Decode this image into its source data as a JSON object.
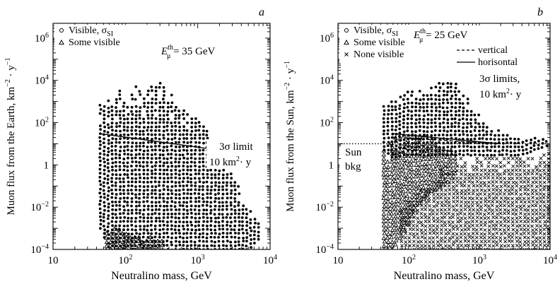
{
  "figure_colors": {
    "ink": "#000000",
    "background": "#ffffff"
  },
  "chart_data": [
    {
      "type": "scatter",
      "panel_letter": "a",
      "xlabel": "Neutralino mass, GeV",
      "ylabel": "Muon flux from the Earth, km",
      "ylabel_exponents": [
        "−2",
        "−1"
      ],
      "ylabel_mid": "· y",
      "x_log": true,
      "y_log": true,
      "xlim": [
        10,
        10000
      ],
      "ylim": [
        0.0001,
        5000000
      ],
      "x_ticks": [
        {
          "value": 10,
          "label": "10",
          "sup": ""
        },
        {
          "value": 100,
          "label": "10",
          "sup": "2"
        },
        {
          "value": 1000,
          "label": "10",
          "sup": "3"
        },
        {
          "value": 10000,
          "label": "10",
          "sup": "4"
        }
      ],
      "y_ticks": [
        {
          "value": 0.0001,
          "label": "10",
          "sup": "−4"
        },
        {
          "value": 0.01,
          "label": "10",
          "sup": "−2"
        },
        {
          "value": 1,
          "label": "1",
          "sup": ""
        },
        {
          "value": 100,
          "label": "10",
          "sup": "2"
        },
        {
          "value": 10000,
          "label": "10",
          "sup": "4"
        },
        {
          "value": 1000000,
          "label": "10",
          "sup": "6"
        }
      ],
      "legend": [
        {
          "marker": "circle",
          "label": "Visible, σ",
          "sub": "SI"
        },
        {
          "marker": "triangle",
          "label": "Some visible",
          "sub": ""
        }
      ],
      "threshold": {
        "base": "E",
        "sup": "th",
        "sub": "μ",
        "value": "= 35 GeV"
      },
      "annotations": [
        {
          "text": "3σ limit",
          "sup": "",
          "tail": ""
        },
        {
          "text": "10 km",
          "sup": "2",
          "tail": "· y"
        }
      ],
      "limit_lines": [
        {
          "name": "3σ limit",
          "style": "solid",
          "x": [
            45,
            2000
          ],
          "y": [
            30,
            5
          ]
        }
      ],
      "series": [
        {
          "name": "Visible, σSI",
          "marker": "circle",
          "envelope": {
            "x": [
              45,
              60,
              90,
              130,
              200,
              300,
              400,
              600,
              900,
              1400,
              2000,
              3000,
              5000,
              7000
            ],
            "upper": [
              800,
              1500,
              4000,
              5000,
              5000,
              8000,
              3000,
              1000,
              400,
              50,
              5,
              0.5,
              0.01,
              0.002
            ],
            "lower": [
              0.001,
              0.0001,
              0.0001,
              0.0001,
              0.0001,
              0.0001,
              0.0001,
              0.0001,
              0.0001,
              0.0001,
              0.0001,
              0.0001,
              0.0001,
              0.0003
            ]
          }
        },
        {
          "name": "Some visible",
          "marker": "triangle",
          "envelope": {
            "x": [
              55,
              80,
              120,
              200,
              350
            ],
            "upper": [
              0.001,
              0.001,
              0.0005,
              0.0004,
              0.0003
            ],
            "lower": [
              0.0001,
              0.0001,
              0.0001,
              0.0001,
              0.0001
            ]
          }
        }
      ]
    },
    {
      "type": "scatter",
      "panel_letter": "b",
      "xlabel": "Neutralino mass, GeV",
      "ylabel": "Muon flux from the Sun, km",
      "ylabel_exponents": [
        "−2",
        "−1"
      ],
      "ylabel_mid": "· y",
      "x_log": true,
      "y_log": true,
      "xlim": [
        10,
        10000
      ],
      "ylim": [
        0.0001,
        5000000
      ],
      "x_ticks": [
        {
          "value": 10,
          "label": "10",
          "sup": ""
        },
        {
          "value": 100,
          "label": "10",
          "sup": "2"
        },
        {
          "value": 1000,
          "label": "10",
          "sup": "3"
        },
        {
          "value": 10000,
          "label": "10",
          "sup": "4"
        }
      ],
      "y_ticks": [
        {
          "value": 0.0001,
          "label": "10",
          "sup": "−4"
        },
        {
          "value": 0.01,
          "label": "10",
          "sup": "−2"
        },
        {
          "value": 1,
          "label": "1",
          "sup": ""
        },
        {
          "value": 100,
          "label": "10",
          "sup": "2"
        },
        {
          "value": 10000,
          "label": "10",
          "sup": "4"
        },
        {
          "value": 1000000,
          "label": "10",
          "sup": "6"
        }
      ],
      "legend": [
        {
          "marker": "circle",
          "label": "Visible, σ",
          "sub": "SI"
        },
        {
          "marker": "triangle",
          "label": "Some visible",
          "sub": ""
        },
        {
          "marker": "cross",
          "label": "None visible",
          "sub": ""
        }
      ],
      "threshold": {
        "base": "E",
        "sup": "th",
        "sub": "μ",
        "value": "= 25 GeV"
      },
      "line_legend": [
        {
          "style": "dashed",
          "label": "vertical"
        },
        {
          "style": "solid",
          "label": "horisontal"
        }
      ],
      "annotations": [
        {
          "text": "3σ limits,",
          "sup": "",
          "tail": ""
        },
        {
          "text": "10 km",
          "sup": "2",
          "tail": "· y"
        }
      ],
      "bkg_labels": [
        "Sun",
        "bkg"
      ],
      "limit_lines": [
        {
          "name": "vertical",
          "style": "dashed",
          "x": [
            60,
            2000
          ],
          "y": [
            20,
            10
          ]
        },
        {
          "name": "horisontal",
          "style": "solid",
          "x": [
            60,
            2000
          ],
          "y": [
            30,
            10
          ]
        },
        {
          "name": "Sun bkg",
          "style": "dotted",
          "x": [
            10,
            10000
          ],
          "y": [
            10,
            10
          ]
        }
      ],
      "series": [
        {
          "name": "Visible, σSI",
          "marker": "circle",
          "envelope": {
            "x": [
              45,
              60,
              90,
              130,
              200,
              300,
              450,
              650,
              1000,
              1600,
              2500,
              4000,
              6000,
              9000
            ],
            "upper": [
              1000,
              1200,
              3000,
              4000,
              4000,
              12000,
              8000,
              1500,
              300,
              50,
              30,
              20,
              20,
              15
            ],
            "lower": [
              5,
              2,
              3,
              3,
              3,
              3,
              3,
              3,
              3,
              3,
              3,
              3,
              5,
              8
            ]
          }
        },
        {
          "name": "Some visible",
          "marker": "triangle",
          "envelope": {
            "x": [
              45,
              60,
              90,
              130,
              200,
              300,
              500
            ],
            "upper": [
              5,
              20,
              30,
              30,
              20,
              10,
              5
            ],
            "lower": [
              0.0001,
              0.0001,
              0.001,
              0.01,
              0.05,
              0.1,
              0.5
            ]
          }
        },
        {
          "name": "None visible",
          "marker": "cross",
          "envelope": {
            "x": [
              80,
              130,
              200,
              300,
              500,
              800,
              1300,
              2000,
              3000,
              5000,
              8000,
              10000
            ],
            "upper": [
              0.01,
              0.05,
              0.1,
              1,
              2,
              3,
              3,
              3,
              3,
              3,
              5,
              5
            ],
            "lower": [
              0.0001,
              0.0001,
              0.0001,
              0.0001,
              0.0001,
              0.0001,
              0.0001,
              0.0001,
              0.0001,
              0.0001,
              0.0001,
              0.0001
            ]
          }
        }
      ]
    }
  ]
}
